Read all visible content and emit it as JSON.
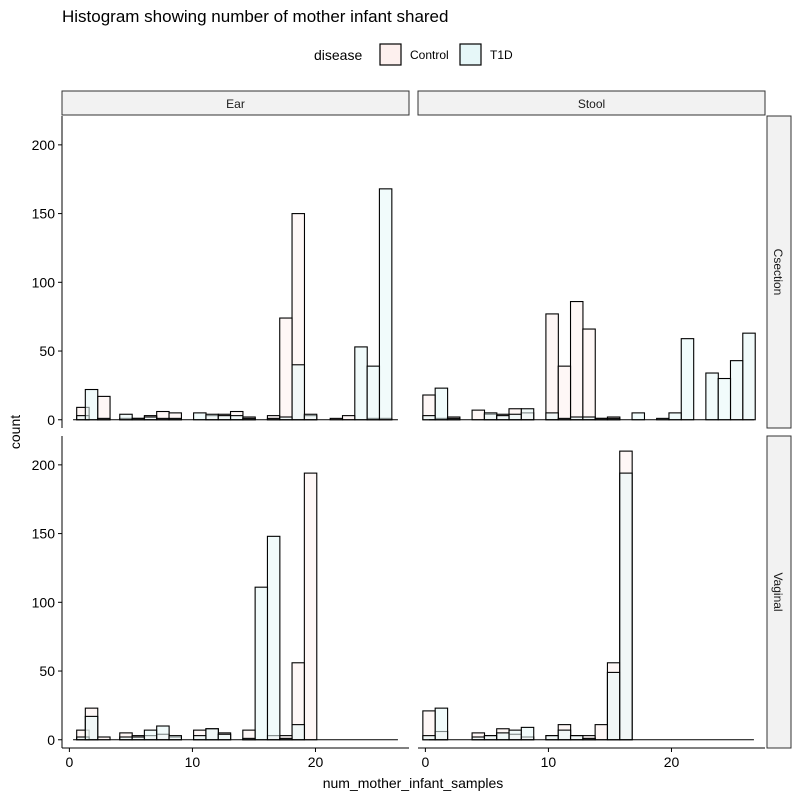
{
  "chart_data": {
    "type": "bar",
    "title": "Histogram showing number of mother infant shared",
    "xlabel": "num_mother_infant_samples",
    "ylabel": "count",
    "xlim": [
      -0.6,
      27.6
    ],
    "ylim": [
      -6,
      221
    ],
    "x_ticks": [
      0,
      10,
      20
    ],
    "y_ticks": [
      0,
      50,
      100,
      150,
      200
    ],
    "bin_width": 1.01,
    "legend": {
      "title": "disease",
      "position": "top",
      "entries": [
        {
          "label": "Control",
          "fill": "#FDF0EE"
        },
        {
          "label": "T1D",
          "fill": "#E6F7F8"
        }
      ]
    },
    "facet_cols": [
      "Ear",
      "Stool"
    ],
    "facet_rows": [
      "Csection",
      "Vaginal"
    ],
    "panels": [
      {
        "col": "Ear",
        "row": "Csection",
        "series": [
          {
            "name": "Control",
            "x": [
              1.1,
              2.8,
              4.6,
              5.6,
              6.6,
              7.6,
              8.6,
              11.6,
              12.6,
              13.6,
              14.6,
              16.6,
              17.6,
              18.6,
              19.6,
              21.7,
              22.7,
              24.7,
              25.7
            ],
            "y": [
              9,
              17,
              1,
              1,
              3,
              6,
              5,
              3,
              4,
              6,
              2,
              3,
              74,
              150,
              3,
              1,
              3,
              1,
              1
            ]
          },
          {
            "name": "T1D",
            "x": [
              1.1,
              1.8,
              2.8,
              4.6,
              5.6,
              6.6,
              7.6,
              8.6,
              10.6,
              11.6,
              12.6,
              13.6,
              14.6,
              16.6,
              17.6,
              18.6,
              19.6,
              23.7,
              24.7,
              25.7
            ],
            "y": [
              3,
              22,
              1,
              4,
              1,
              2,
              1,
              1,
              5,
              4,
              3,
              3,
              1,
              1,
              2,
              40,
              4,
              53,
              39,
              168
            ]
          }
        ]
      },
      {
        "col": "Stool",
        "row": "Csection",
        "series": [
          {
            "name": "Control",
            "x": [
              0.3,
              1.3,
              2.3,
              4.3,
              5.3,
              6.3,
              7.3,
              8.3,
              10.3,
              11.3,
              12.3,
              13.3,
              14.3,
              15.3
            ],
            "y": [
              18,
              1,
              2,
              7,
              4,
              4,
              8,
              5,
              77,
              39,
              86,
              66,
              1,
              2
            ]
          },
          {
            "name": "T1D",
            "x": [
              0.3,
              1.3,
              2.3,
              5.3,
              6.3,
              7.3,
              8.3,
              10.3,
              11.3,
              12.3,
              13.3,
              14.3,
              15.3,
              17.3,
              19.3,
              20.3,
              21.3,
              23.3,
              24.3,
              25.3,
              26.3
            ],
            "y": [
              3,
              23,
              1,
              5,
              3,
              4,
              8,
              5,
              1,
              2,
              2,
              1,
              1,
              5,
              1,
              5,
              59,
              34,
              30,
              43,
              63
            ]
          }
        ]
      },
      {
        "col": "Ear",
        "row": "Vaginal",
        "series": [
          {
            "name": "Control",
            "x": [
              1.1,
              1.8,
              2.8,
              4.6,
              5.6,
              6.6,
              7.6,
              8.6,
              10.6,
              11.6,
              12.6,
              14.6,
              16.6,
              17.6,
              18.6,
              19.6
            ],
            "y": [
              7,
              23,
              2,
              5,
              3,
              3,
              4,
              2,
              7,
              8,
              5,
              7,
              3,
              3,
              56,
              194
            ]
          },
          {
            "name": "T1D",
            "x": [
              1.1,
              1.8,
              4.6,
              5.6,
              6.6,
              7.6,
              8.6,
              10.6,
              11.6,
              12.6,
              14.6,
              15.6,
              16.6,
              17.6,
              18.6
            ],
            "y": [
              2,
              17,
              2,
              2,
              7,
              10,
              3,
              3,
              8,
              4,
              1,
              111,
              148,
              1,
              11
            ]
          }
        ]
      },
      {
        "col": "Stool",
        "row": "Vaginal",
        "series": [
          {
            "name": "Control",
            "x": [
              0.3,
              1.3,
              4.3,
              5.3,
              6.3,
              7.3,
              8.3,
              10.3,
              11.3,
              12.3,
              13.3,
              14.3,
              15.3,
              16.3
            ],
            "y": [
              21,
              6,
              5,
              3,
              8,
              4,
              2,
              3,
              11,
              3,
              3,
              11,
              56,
              210
            ]
          },
          {
            "name": "T1D",
            "x": [
              0.3,
              1.3,
              4.3,
              5.3,
              6.3,
              7.3,
              8.3,
              10.3,
              11.3,
              12.3,
              13.3,
              15.3,
              16.3
            ],
            "y": [
              3,
              23,
              2,
              3,
              5,
              7,
              9,
              3,
              7,
              3,
              1,
              49,
              194
            ]
          }
        ]
      }
    ]
  }
}
